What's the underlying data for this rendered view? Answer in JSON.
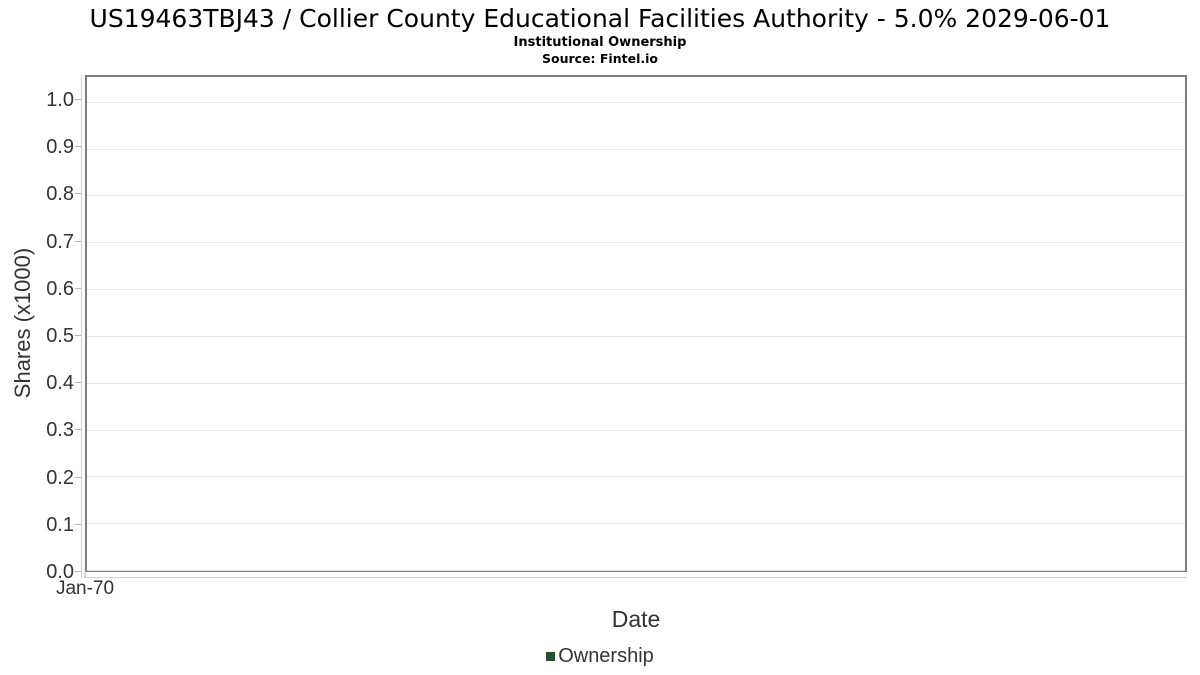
{
  "chart_data": {
    "type": "line",
    "title": "US19463TBJ43 / Collier County Educational Facilities Authority - 5.0% 2029-06-01",
    "subtitle": "Institutional Ownership",
    "source": "Source: Fintel.io",
    "xlabel": "Date",
    "ylabel": "Shares (x1000)",
    "x_tick_labels": [
      "Jan-70"
    ],
    "x_tick_positions_pct": [
      0
    ],
    "y_ticks": [
      0.0,
      0.1,
      0.2,
      0.3,
      0.4,
      0.5,
      0.6,
      0.7,
      0.8,
      0.9,
      1.0
    ],
    "ylim": [
      0,
      1.053
    ],
    "grid": "horizontal",
    "legend_position": "bottom",
    "series": [
      {
        "name": "Ownership",
        "color": "#24512d",
        "x": [],
        "values": []
      }
    ]
  },
  "colors": {
    "plot_border": "#7d7d7d",
    "gridline": "#e7e7e7",
    "axis_text": "#333333",
    "legend_marker": "#24512d"
  }
}
